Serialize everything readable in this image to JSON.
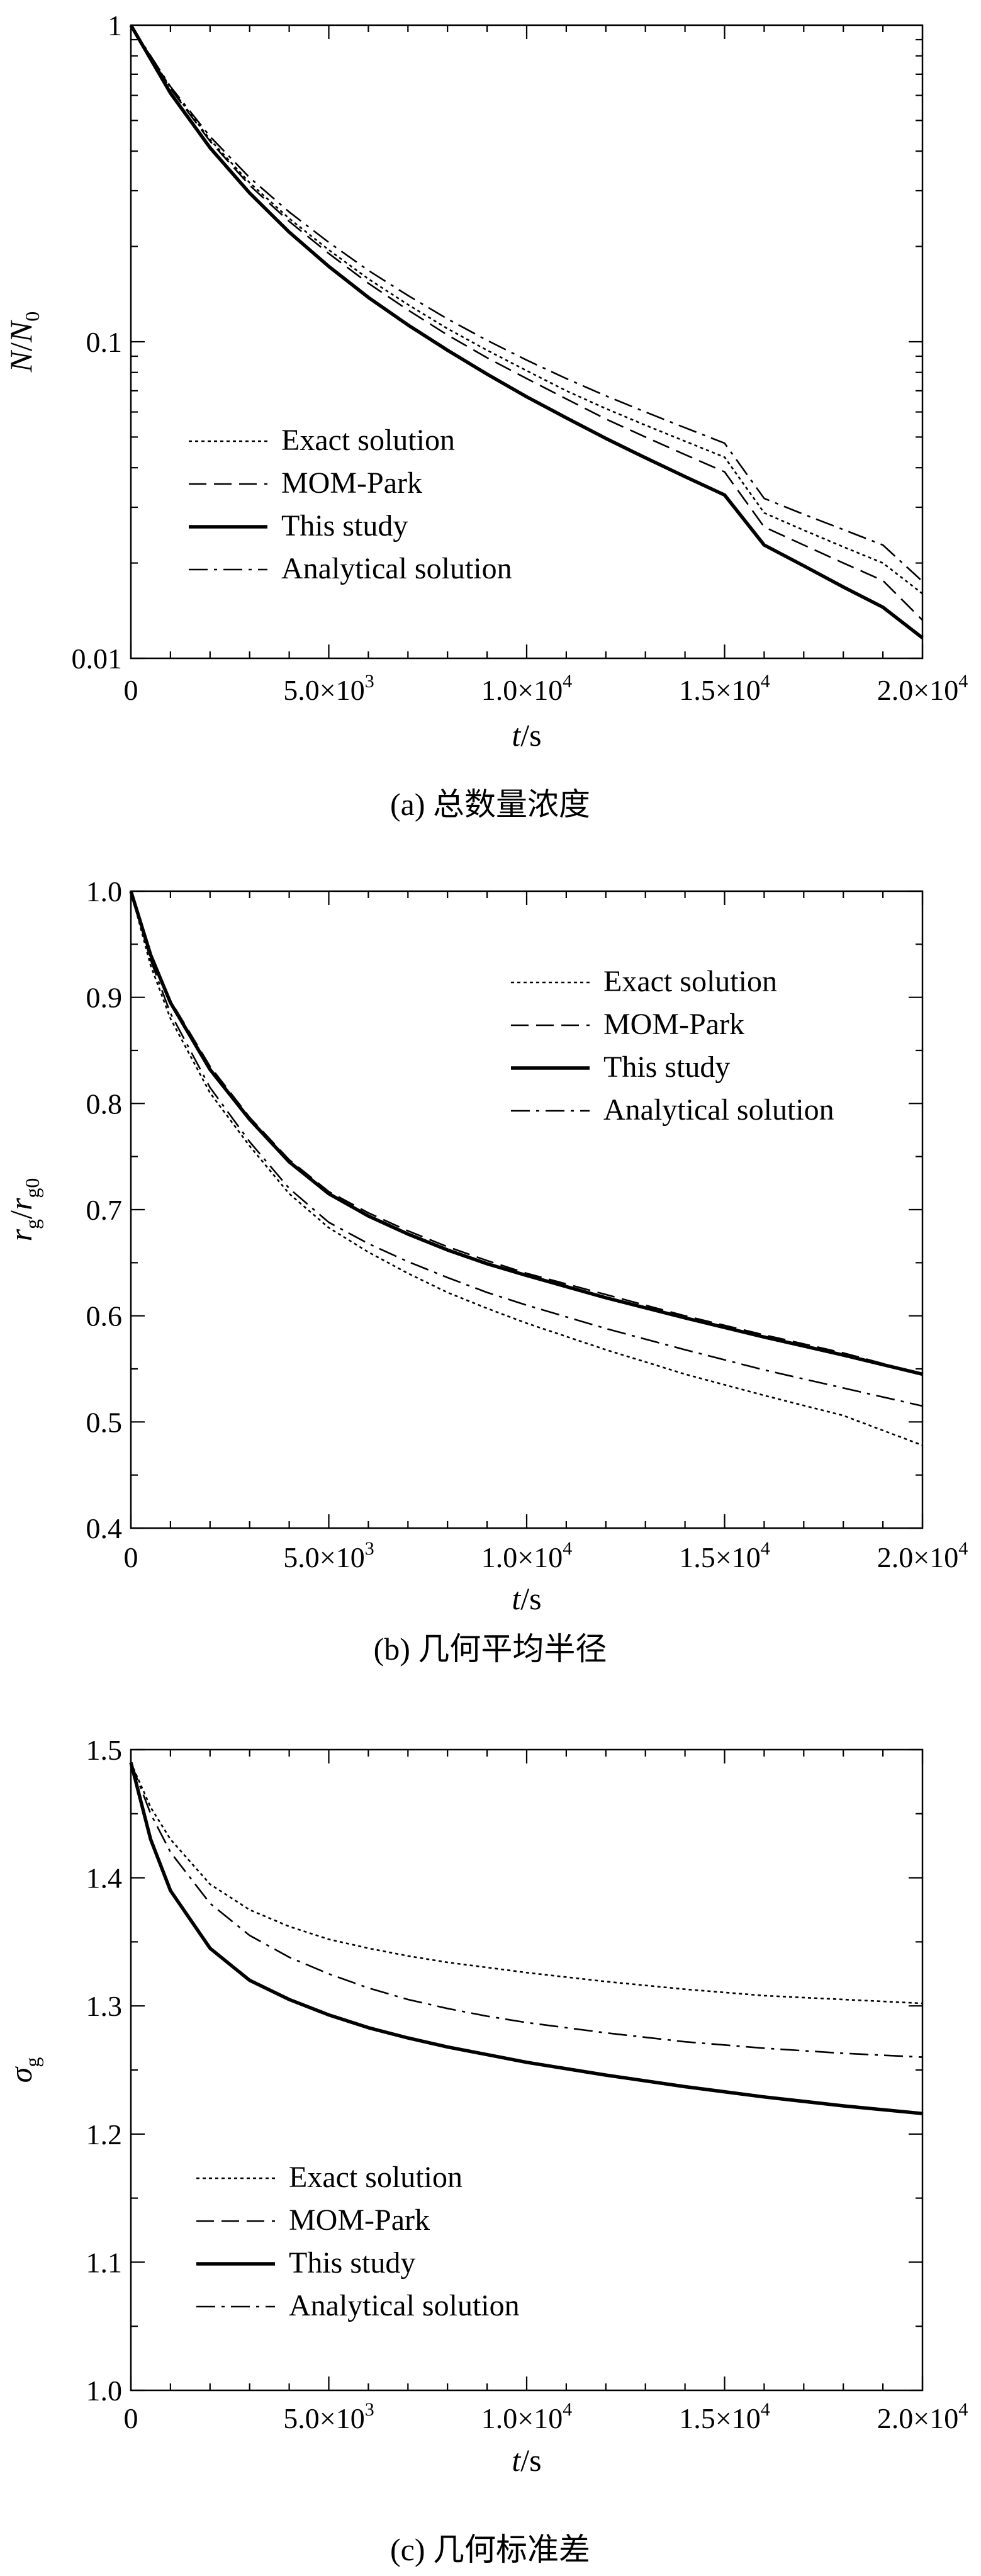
{
  "x_axis": {
    "label_italic": "t",
    "label_unit": "/s",
    "ticks": [
      {
        "value": 0,
        "label": "0",
        "exp": ""
      },
      {
        "value": 5000,
        "label": "5.0×10",
        "exp": "3"
      },
      {
        "value": 10000,
        "label": "1.0×10",
        "exp": "4"
      },
      {
        "value": 15000,
        "label": "1.5×10",
        "exp": "4"
      },
      {
        "value": 20000,
        "label": "2.0×10",
        "exp": "4"
      }
    ]
  },
  "legend_labels": [
    "Exact solution",
    "MOM-Park",
    "This study",
    "Analytical solution"
  ],
  "line_styles": {
    "Exact solution": "dotted",
    "MOM-Park": "dashed",
    "This study": "solid-thick",
    "Analytical solution": "dash-dot"
  },
  "chart_data": [
    {
      "type": "line",
      "caption": "(a) 总数量浓度",
      "ylabel_parts": [
        "N",
        "/",
        "N",
        "0"
      ],
      "yscale": "log",
      "xlim": [
        0,
        20000
      ],
      "ylim": [
        0.01,
        1
      ],
      "yticks": [
        {
          "value": 1,
          "label": "1"
        },
        {
          "value": 0.1,
          "label": "0.1"
        },
        {
          "value": 0.01,
          "label": "0.01"
        }
      ],
      "legend_position": "bottom-left",
      "x": [
        0,
        1000,
        2000,
        3000,
        4000,
        5000,
        6000,
        7000,
        8000,
        9000,
        10000,
        11000,
        12000,
        13000,
        14000,
        15000,
        16000,
        17000,
        18000,
        19000,
        20000
      ],
      "series": [
        {
          "name": "Exact solution",
          "values": [
            1.0,
            0.635,
            0.435,
            0.318,
            0.245,
            0.195,
            0.158,
            0.131,
            0.11,
            0.094,
            0.081,
            0.07,
            0.0615,
            0.0545,
            0.0485,
            0.0432,
            0.0288,
            0.0254,
            0.0225,
            0.02,
            0.016
          ]
        },
        {
          "name": "MOM-Park",
          "values": [
            1.0,
            0.63,
            0.43,
            0.312,
            0.24,
            0.19,
            0.153,
            0.126,
            0.105,
            0.089,
            0.0765,
            0.066,
            0.057,
            0.05,
            0.044,
            0.0388,
            0.026,
            0.0228,
            0.02,
            0.0176,
            0.0132
          ]
        },
        {
          "name": "This study",
          "values": [
            1.0,
            0.61,
            0.41,
            0.295,
            0.222,
            0.173,
            0.138,
            0.113,
            0.094,
            0.079,
            0.067,
            0.0575,
            0.0495,
            0.043,
            0.0375,
            0.0328,
            0.0228,
            0.0196,
            0.0168,
            0.0145,
            0.0116
          ]
        },
        {
          "name": "Analytical solution",
          "values": [
            1.0,
            0.64,
            0.445,
            0.33,
            0.257,
            0.206,
            0.168,
            0.14,
            0.118,
            0.101,
            0.0875,
            0.0765,
            0.0675,
            0.06,
            0.0535,
            0.0478,
            0.032,
            0.0285,
            0.0255,
            0.0228,
            0.0175
          ]
        }
      ]
    },
    {
      "type": "line",
      "caption": "(b) 几何平均半径",
      "ylabel_parts": [
        "r",
        "g",
        "/",
        "r",
        "g0"
      ],
      "yscale": "linear",
      "xlim": [
        0,
        20000
      ],
      "ylim": [
        0.4,
        1.0
      ],
      "yticks": [
        {
          "value": 1.0,
          "label": "1.0"
        },
        {
          "value": 0.9,
          "label": "0.9"
        },
        {
          "value": 0.8,
          "label": "0.8"
        },
        {
          "value": 0.7,
          "label": "0.7"
        },
        {
          "value": 0.6,
          "label": "0.6"
        },
        {
          "value": 0.5,
          "label": "0.5"
        },
        {
          "value": 0.4,
          "label": "0.4"
        }
      ],
      "legend_position": "top-right",
      "x": [
        0,
        500,
        1000,
        2000,
        3000,
        4000,
        5000,
        6000,
        7000,
        8000,
        9000,
        10000,
        12000,
        14000,
        16000,
        18000,
        20000
      ],
      "series": [
        {
          "name": "Exact solution",
          "values": [
            1.0,
            0.93,
            0.88,
            0.81,
            0.76,
            0.715,
            0.683,
            0.66,
            0.64,
            0.622,
            0.607,
            0.593,
            0.568,
            0.545,
            0.525,
            0.506,
            0.478
          ]
        },
        {
          "name": "MOM-Park",
          "values": [
            1.0,
            0.94,
            0.897,
            0.835,
            0.787,
            0.747,
            0.717,
            0.697,
            0.68,
            0.665,
            0.652,
            0.64,
            0.62,
            0.6,
            0.582,
            0.565,
            0.545
          ]
        },
        {
          "name": "This study",
          "values": [
            1.0,
            0.94,
            0.895,
            0.832,
            0.785,
            0.745,
            0.715,
            0.694,
            0.677,
            0.662,
            0.649,
            0.638,
            0.617,
            0.598,
            0.58,
            0.563,
            0.545
          ]
        },
        {
          "name": "Analytical solution",
          "values": [
            1.0,
            0.935,
            0.885,
            0.815,
            0.764,
            0.72,
            0.688,
            0.668,
            0.651,
            0.636,
            0.622,
            0.61,
            0.588,
            0.568,
            0.549,
            0.532,
            0.515
          ]
        }
      ]
    },
    {
      "type": "line",
      "caption": "(c) 几何标准差",
      "ylabel_parts": [
        "σ",
        "g"
      ],
      "yscale": "linear",
      "xlim": [
        0,
        20000
      ],
      "ylim": [
        1.0,
        1.5
      ],
      "yticks": [
        {
          "value": 1.5,
          "label": "1.5"
        },
        {
          "value": 1.4,
          "label": "1.4"
        },
        {
          "value": 1.3,
          "label": "1.3"
        },
        {
          "value": 1.2,
          "label": "1.2"
        },
        {
          "value": 1.1,
          "label": "1.1"
        },
        {
          "value": 1.0,
          "label": "1.0"
        }
      ],
      "legend_position": "bottom-left",
      "x": [
        0,
        500,
        1000,
        2000,
        3000,
        4000,
        5000,
        6000,
        7000,
        8000,
        9000,
        10000,
        12000,
        14000,
        16000,
        18000,
        20000
      ],
      "series": [
        {
          "name": "Exact solution",
          "values": [
            1.49,
            1.455,
            1.43,
            1.395,
            1.375,
            1.362,
            1.352,
            1.345,
            1.339,
            1.334,
            1.33,
            1.326,
            1.319,
            1.313,
            1.308,
            1.305,
            1.302
          ]
        },
        {
          "name": "MOM-Park",
          "values": [
            1.49,
            1.43,
            1.39,
            1.345,
            1.32,
            1.305,
            1.293,
            1.283,
            1.275,
            1.268,
            1.262,
            1.256,
            1.246,
            1.237,
            1.229,
            1.222,
            1.216
          ]
        },
        {
          "name": "This study",
          "values": [
            1.49,
            1.43,
            1.39,
            1.345,
            1.32,
            1.305,
            1.293,
            1.283,
            1.275,
            1.268,
            1.262,
            1.256,
            1.246,
            1.237,
            1.229,
            1.222,
            1.216
          ]
        },
        {
          "name": "Analytical solution",
          "values": [
            1.49,
            1.45,
            1.42,
            1.38,
            1.355,
            1.338,
            1.325,
            1.314,
            1.305,
            1.298,
            1.292,
            1.287,
            1.279,
            1.272,
            1.267,
            1.263,
            1.26
          ]
        }
      ]
    }
  ]
}
